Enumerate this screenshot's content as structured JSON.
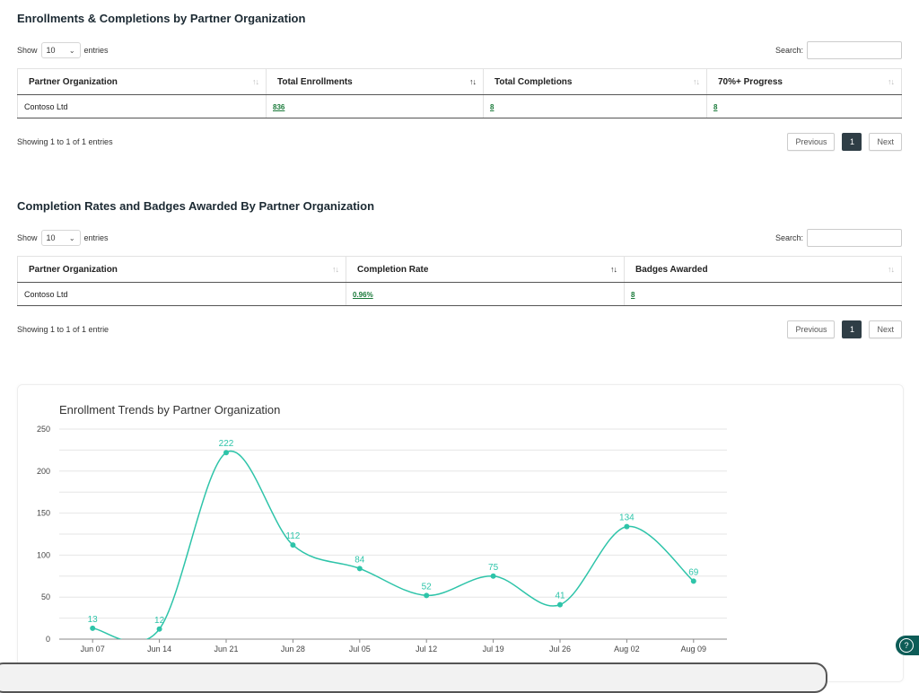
{
  "table1": {
    "title": "Enrollments & Completions by Partner Organization",
    "show_label": "Show",
    "page_length": "10",
    "entries_label": "entries",
    "search_label": "Search:",
    "search_value": "",
    "columns": [
      "Partner Organization",
      "Total Enrollments",
      "Total Completions",
      "70%+ Progress"
    ],
    "rows": [
      {
        "org": "Contoso Ltd",
        "enrollments": "836",
        "completions": "8",
        "progress": "8"
      }
    ],
    "info": "Showing 1 to 1 of 1 entries",
    "prev_label": "Previous",
    "page": "1",
    "next_label": "Next"
  },
  "table2": {
    "title": "Completion Rates and Badges Awarded By Partner Organization",
    "show_label": "Show",
    "page_length": "10",
    "entries_label": "entries",
    "search_label": "Search:",
    "search_value": "",
    "columns": [
      "Partner Organization",
      "Completion Rate",
      "Badges Awarded"
    ],
    "rows": [
      {
        "org": "Contoso Ltd",
        "rate": "0.96%",
        "badges": "8"
      }
    ],
    "info": "Showing 1 to 1 of 1 entrie",
    "prev_label": "Previous",
    "page": "1",
    "next_label": "Next"
  },
  "icons": {
    "sort": "sort-icon",
    "chevron": "chevron-down-icon",
    "help": "help-icon"
  },
  "colors": {
    "line": "#2ec4a9",
    "pager_active": "#2f3e46",
    "link": "#1a7a3a"
  },
  "chart_data": {
    "type": "line",
    "title": "Enrollment Trends by Partner Organization",
    "categories": [
      "Jun 07",
      "Jun 14",
      "Jun 21",
      "Jun 28",
      "Jul 05",
      "Jul 12",
      "Jul 19",
      "Jul 26",
      "Aug 02",
      "Aug 09"
    ],
    "series": [
      {
        "values": [
          13,
          12,
          222,
          112,
          84,
          52,
          75,
          41,
          134,
          69
        ]
      }
    ],
    "yticks": [
      0,
      50,
      100,
      150,
      200,
      250
    ],
    "ylim": [
      0,
      250
    ],
    "grid": true
  }
}
